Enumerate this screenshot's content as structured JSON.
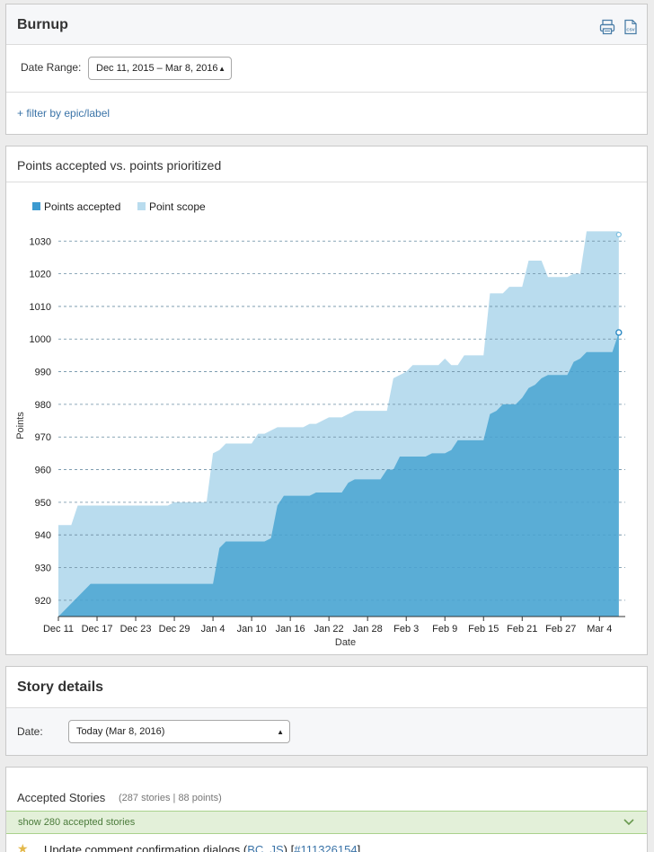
{
  "burnup": {
    "title": "Burnup",
    "date_range_label": "Date Range:",
    "date_range_value": "Dec 11, 2015 – Mar 8, 2016",
    "filter_link": "+ filter by epic/label",
    "icons": [
      "print-icon",
      "csv-icon"
    ],
    "csv_text": "CSV"
  },
  "chart_panel": {
    "title": "Points accepted vs. points prioritized"
  },
  "chart_data": {
    "type": "area",
    "xlabel": "Date",
    "ylabel": "Points",
    "ylim": [
      915,
      1032
    ],
    "yticks": [
      920,
      930,
      940,
      950,
      960,
      970,
      980,
      990,
      1000,
      1010,
      1020,
      1030
    ],
    "xticks": [
      "Dec 11",
      "Dec 17",
      "Dec 23",
      "Dec 29",
      "Jan 4",
      "Jan 10",
      "Jan 16",
      "Jan 22",
      "Jan 28",
      "Feb 3",
      "Feb 9",
      "Feb 15",
      "Feb 21",
      "Feb 27",
      "Mar 4"
    ],
    "legend": "top-left",
    "grid": true,
    "series": [
      {
        "name": "Points accepted",
        "color": "#5aadd6",
        "values": [
          [
            0,
            915
          ],
          [
            1,
            917
          ],
          [
            5,
            925
          ],
          [
            24,
            925
          ],
          [
            25,
            936
          ],
          [
            26,
            938
          ],
          [
            32,
            938
          ],
          [
            33,
            939
          ],
          [
            34,
            949
          ],
          [
            35,
            952
          ],
          [
            39,
            952
          ],
          [
            40,
            953
          ],
          [
            44,
            953
          ],
          [
            45,
            956
          ],
          [
            46,
            957
          ],
          [
            50,
            957
          ],
          [
            51,
            960
          ],
          [
            52,
            960
          ],
          [
            53,
            964
          ],
          [
            57,
            964
          ],
          [
            58,
            965
          ],
          [
            60,
            965
          ],
          [
            61,
            966
          ],
          [
            62,
            969
          ],
          [
            66,
            969
          ],
          [
            67,
            977
          ],
          [
            68,
            978
          ],
          [
            69,
            980
          ],
          [
            71,
            980
          ],
          [
            72,
            982
          ],
          [
            73,
            985
          ],
          [
            74,
            986
          ],
          [
            75,
            988
          ],
          [
            76,
            989
          ],
          [
            79,
            989
          ],
          [
            80,
            993
          ],
          [
            81,
            994
          ],
          [
            82,
            996
          ],
          [
            86,
            996
          ],
          [
            87,
            1002
          ]
        ]
      },
      {
        "name": "Point scope",
        "color": "#b9dcee",
        "values": [
          [
            0,
            943
          ],
          [
            2,
            943
          ],
          [
            3,
            949
          ],
          [
            17,
            949
          ],
          [
            18,
            950
          ],
          [
            23,
            950
          ],
          [
            24,
            965
          ],
          [
            25,
            966
          ],
          [
            26,
            968
          ],
          [
            30,
            968
          ],
          [
            31,
            971
          ],
          [
            32,
            971
          ],
          [
            33,
            972
          ],
          [
            34,
            973
          ],
          [
            38,
            973
          ],
          [
            39,
            974
          ],
          [
            40,
            974
          ],
          [
            41,
            975
          ],
          [
            42,
            976
          ],
          [
            44,
            976
          ],
          [
            45,
            977
          ],
          [
            46,
            978
          ],
          [
            51,
            978
          ],
          [
            52,
            988
          ],
          [
            53,
            989
          ],
          [
            54,
            990
          ],
          [
            55,
            992
          ],
          [
            59,
            992
          ],
          [
            60,
            994
          ],
          [
            61,
            992
          ],
          [
            62,
            992
          ],
          [
            63,
            995
          ],
          [
            66,
            995
          ],
          [
            67,
            1014
          ],
          [
            69,
            1014
          ],
          [
            70,
            1016
          ],
          [
            72,
            1016
          ],
          [
            73,
            1024
          ],
          [
            75,
            1024
          ],
          [
            76,
            1019
          ],
          [
            79,
            1019
          ],
          [
            80,
            1020
          ],
          [
            81,
            1020
          ],
          [
            82,
            1033
          ],
          [
            87,
            1033
          ]
        ]
      }
    ]
  },
  "story_details": {
    "title": "Story details",
    "date_label": "Date:",
    "date_value": "Today (Mar 8, 2016)"
  },
  "accepted": {
    "title": "Accepted Stories",
    "count": "(287 stories | 88 points)",
    "show_link": "show 280 accepted stories",
    "first_story": {
      "title": "Update comment confirmation dialogs",
      "open_paren": " (",
      "labels": "BC, JS",
      "mid": ") [",
      "id": "#111326154",
      "close": "]"
    }
  }
}
